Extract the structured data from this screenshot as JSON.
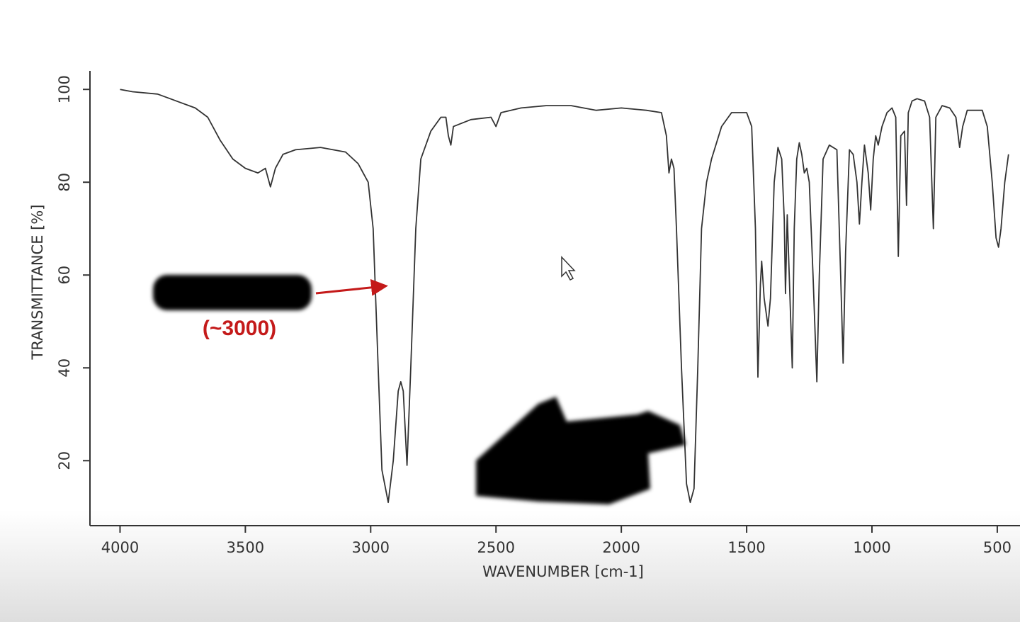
{
  "chart_data": {
    "type": "line",
    "xlabel": "WAVENUMBER [cm-1]",
    "ylabel": "TRANSMITTANCE [%]",
    "annotations": [
      "(~3000)"
    ],
    "color": "#333333",
    "x": [
      4000,
      3950,
      3850,
      3800,
      3700,
      3650,
      3600,
      3550,
      3500,
      3450,
      3420,
      3400,
      3380,
      3350,
      3300,
      3200,
      3100,
      3050,
      3010,
      2990,
      2970,
      2955,
      2930,
      2910,
      2890,
      2880,
      2870,
      2855,
      2840,
      2820,
      2800,
      2760,
      2720,
      2700,
      2690,
      2680,
      2670,
      2600,
      2520,
      2500,
      2480,
      2400,
      2300,
      2200,
      2100,
      2000,
      1900,
      1840,
      1820,
      1810,
      1800,
      1790,
      1780,
      1760,
      1740,
      1725,
      1710,
      1695,
      1680,
      1660,
      1640,
      1600,
      1560,
      1500,
      1480,
      1465,
      1455,
      1445,
      1440,
      1430,
      1415,
      1405,
      1390,
      1375,
      1360,
      1350,
      1345,
      1338,
      1330,
      1318,
      1310,
      1300,
      1290,
      1280,
      1270,
      1260,
      1250,
      1235,
      1220,
      1210,
      1195,
      1170,
      1140,
      1125,
      1115,
      1105,
      1090,
      1075,
      1060,
      1050,
      1040,
      1030,
      1015,
      1005,
      995,
      985,
      975,
      960,
      940,
      920,
      905,
      895,
      885,
      870,
      862,
      855,
      840,
      820,
      790,
      770,
      755,
      745,
      720,
      690,
      665,
      650,
      638,
      620,
      560,
      540,
      520,
      505,
      495,
      485,
      470,
      455
    ],
    "values": [
      100,
      99.5,
      99,
      98,
      96,
      94,
      89,
      85,
      83,
      82,
      83,
      79,
      83,
      86,
      87,
      87.5,
      86.5,
      84,
      80,
      70,
      40,
      18,
      11,
      20,
      35,
      37,
      35,
      19,
      40,
      70,
      85,
      91,
      94,
      94,
      90,
      88,
      92,
      93.5,
      94,
      92,
      95,
      96,
      96.5,
      96.5,
      95.5,
      96,
      95.5,
      95,
      90,
      82,
      85,
      83,
      70,
      40,
      15,
      11,
      14,
      40,
      70,
      80,
      85,
      92,
      95,
      95,
      92,
      70,
      38,
      58,
      63,
      55,
      49,
      55,
      80,
      87.5,
      85,
      72,
      56,
      73,
      60,
      40,
      70,
      85,
      88.5,
      86,
      82,
      83,
      80,
      60,
      37,
      60,
      85,
      88,
      87,
      60,
      41,
      65,
      87,
      86,
      80,
      71,
      80,
      88,
      82,
      74,
      85,
      90,
      88,
      92,
      95,
      96,
      94,
      64,
      90,
      91,
      75,
      95,
      97.5,
      98,
      97.5,
      94,
      70,
      94,
      96.5,
      96,
      94,
      87.5,
      92,
      95.5,
      95.5,
      92,
      80,
      68,
      66,
      70,
      80,
      86
    ],
    "xlim": [
      4120,
      415
    ],
    "ylim": [
      6,
      104
    ],
    "xticks": [
      4000,
      3500,
      3000,
      2500,
      2000,
      1500,
      1000,
      500
    ],
    "yticks": [
      20,
      40,
      60,
      80,
      100
    ],
    "grid": false
  }
}
